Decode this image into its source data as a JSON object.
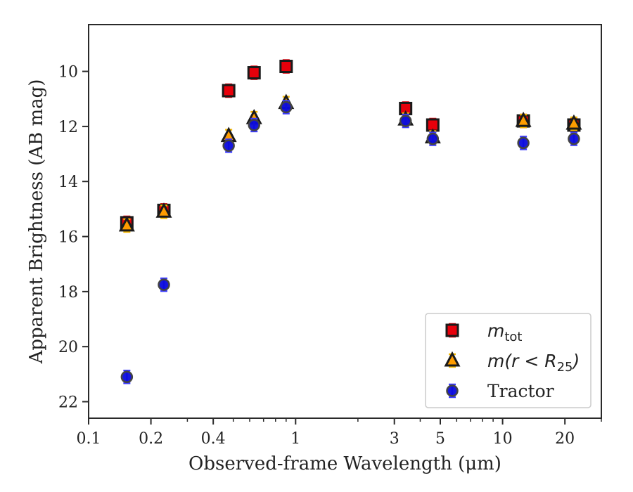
{
  "chart_data": {
    "type": "scatter",
    "title": "",
    "xlabel": "Observed-frame Wavelength (μm)",
    "ylabel": "Apparent Brightness (AB mag)",
    "xscale": "log",
    "xlim": [
      0.1,
      30
    ],
    "ylim": [
      22.6,
      8.3
    ],
    "y_inverted": true,
    "grid": false,
    "x_ticks": [
      {
        "value": 0.1,
        "label": "0.1"
      },
      {
        "value": 0.2,
        "label": "0.2"
      },
      {
        "value": 0.4,
        "label": "0.4"
      },
      {
        "value": 1,
        "label": "1"
      },
      {
        "value": 3,
        "label": "3"
      },
      {
        "value": 5,
        "label": "5"
      },
      {
        "value": 10,
        "label": "10"
      },
      {
        "value": 20,
        "label": "20"
      }
    ],
    "x_minor_ticks": [
      0.3,
      0.5,
      0.6,
      0.7,
      0.8,
      0.9,
      2,
      4,
      6,
      7,
      8,
      9,
      30
    ],
    "y_ticks": [
      {
        "value": 10,
        "label": "10"
      },
      {
        "value": 12,
        "label": "12"
      },
      {
        "value": 14,
        "label": "14"
      },
      {
        "value": 16,
        "label": "16"
      },
      {
        "value": 18,
        "label": "18"
      },
      {
        "value": 20,
        "label": "20"
      },
      {
        "value": 22,
        "label": "22"
      }
    ],
    "legend_position": "bottom-right",
    "series": [
      {
        "name": "m_tot",
        "legend_main": "m",
        "legend_sub": "tot",
        "marker": "square",
        "color": "#e8000b",
        "error_color": "#e8000b",
        "points": [
          {
            "x": 0.153,
            "y": 15.5
          },
          {
            "x": 0.231,
            "y": 15.05
          },
          {
            "x": 0.475,
            "y": 10.7
          },
          {
            "x": 0.63,
            "y": 10.05
          },
          {
            "x": 0.9,
            "y": 9.82
          },
          {
            "x": 3.4,
            "y": 11.35
          },
          {
            "x": 4.6,
            "y": 11.95
          },
          {
            "x": 12.6,
            "y": 11.8
          },
          {
            "x": 22.1,
            "y": 11.95
          }
        ]
      },
      {
        "name": "m(r < R_25)",
        "legend_main": "m(r < R",
        "legend_sub": "25",
        "legend_tail": ")",
        "marker": "triangle",
        "color": "#ff9d00",
        "error_color": "#f5b800",
        "points": [
          {
            "x": 0.153,
            "y": 15.6
          },
          {
            "x": 0.231,
            "y": 15.1
          },
          {
            "x": 0.475,
            "y": 12.35
          },
          {
            "x": 0.63,
            "y": 11.7
          },
          {
            "x": 0.9,
            "y": 11.15
          },
          {
            "x": 3.4,
            "y": 11.75
          },
          {
            "x": 4.6,
            "y": 12.4
          },
          {
            "x": 12.6,
            "y": 11.8
          },
          {
            "x": 22.1,
            "y": 11.9
          }
        ]
      },
      {
        "name": "Tractor",
        "legend_main": "Tractor",
        "marker": "circle",
        "color": "#0b0bdd",
        "error_color": "#3b3bff",
        "points": [
          {
            "x": 0.153,
            "y": 21.1
          },
          {
            "x": 0.231,
            "y": 17.75
          },
          {
            "x": 0.475,
            "y": 12.7
          },
          {
            "x": 0.63,
            "y": 11.95
          },
          {
            "x": 0.9,
            "y": 11.3
          },
          {
            "x": 3.4,
            "y": 11.8
          },
          {
            "x": 4.6,
            "y": 12.45
          },
          {
            "x": 12.6,
            "y": 12.6
          },
          {
            "x": 22.1,
            "y": 12.45
          }
        ]
      }
    ]
  }
}
